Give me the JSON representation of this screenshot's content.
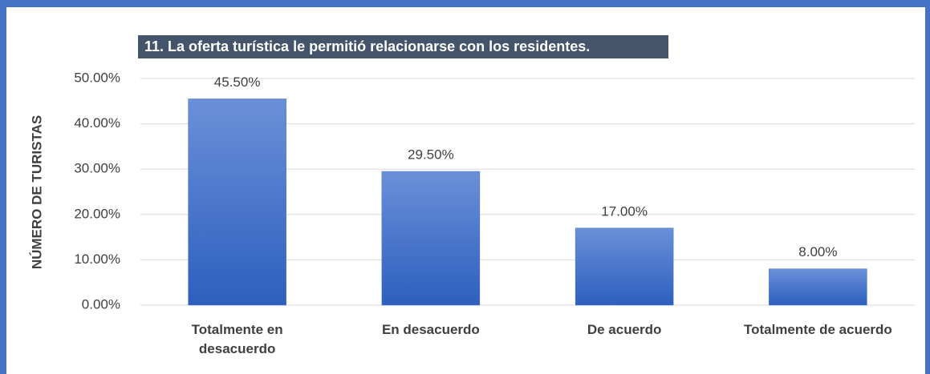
{
  "chart_data": {
    "type": "bar",
    "title": "11. La oferta turística le permitió relacionarse con los residentes.",
    "y_label": "NÚMERO DE TURISTAS",
    "categories": [
      "Totalmente en desacuerdo",
      "En desacuerdo",
      "De acuerdo",
      "Totalmente de acuerdo"
    ],
    "values": [
      45.5,
      29.5,
      17,
      8
    ],
    "value_labels": [
      "45.50%",
      "29.50%",
      "17.00%",
      "8.00%"
    ],
    "color": "#4472c4",
    "ylim": [
      0,
      50
    ],
    "yticks": [
      {
        "value": 0,
        "label": "0.00%"
      },
      {
        "value": 10,
        "label": "10.00%"
      },
      {
        "value": 20,
        "label": "20.00%"
      },
      {
        "value": 30,
        "label": "30.00%"
      },
      {
        "value": 40,
        "label": "40.00%"
      },
      {
        "value": 50,
        "label": "50.00%"
      }
    ],
    "grid": true
  }
}
